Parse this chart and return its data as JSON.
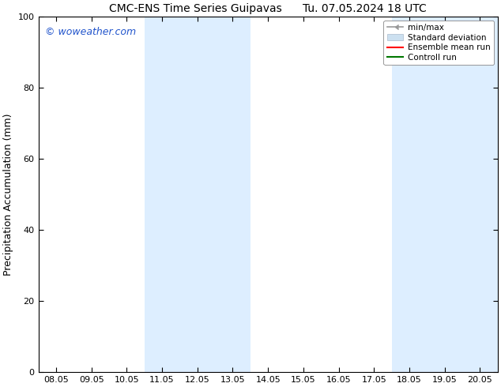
{
  "title_left": "CMC-ENS Time Series Guipavas",
  "title_right": "Tu. 07.05.2024 18 UTC",
  "ylabel": "Precipitation Accumulation (mm)",
  "ylim": [
    0,
    100
  ],
  "yticks": [
    0,
    20,
    40,
    60,
    80,
    100
  ],
  "xtick_labels": [
    "08.05",
    "09.05",
    "10.05",
    "11.05",
    "12.05",
    "13.05",
    "14.05",
    "15.05",
    "16.05",
    "17.05",
    "18.05",
    "19.05",
    "20.05"
  ],
  "shaded_regions": [
    {
      "xstart": 3,
      "xend": 5,
      "color": "#ddeeff"
    },
    {
      "xstart": 10,
      "xend": 12,
      "color": "#ddeeff"
    }
  ],
  "background_color": "#ffffff",
  "watermark_text": "© woweather.com",
  "watermark_color": "#2255cc",
  "legend_items": [
    {
      "label": "min/max",
      "color": "#999999"
    },
    {
      "label": "Standard deviation",
      "color": "#cce0f0"
    },
    {
      "label": "Ensemble mean run",
      "color": "#ff0000"
    },
    {
      "label": "Controll run",
      "color": "#007700"
    }
  ],
  "title_fontsize": 10,
  "ylabel_fontsize": 9,
  "tick_fontsize": 8,
  "legend_fontsize": 7.5,
  "watermark_fontsize": 9
}
